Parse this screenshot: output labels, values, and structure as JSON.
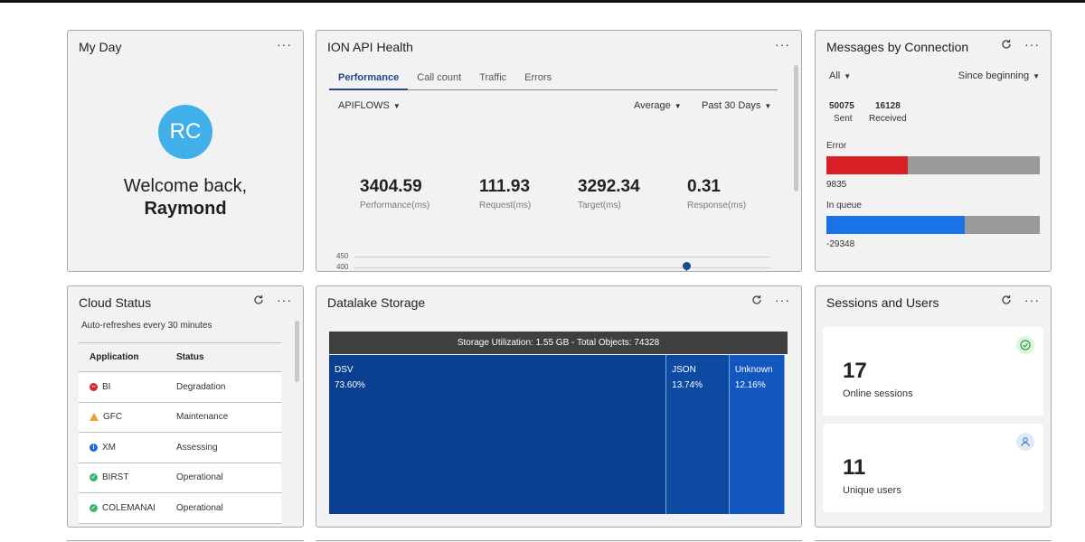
{
  "my_day": {
    "title": "My Day",
    "avatar_initials": "RC",
    "welcome_line": "Welcome back,",
    "user_name": "Raymond",
    "avatar_color": "#41b0ea"
  },
  "ion_api": {
    "title": "ION API Health",
    "tabs": [
      "Performance",
      "Call count",
      "Traffic",
      "Errors"
    ],
    "active_tab": "Performance",
    "filter_apiflows": "APIFLOWS",
    "filter_average": "Average",
    "filter_period": "Past 30 Days",
    "metrics": [
      {
        "value": "3404.59",
        "label": "Performance(ms)"
      },
      {
        "value": "111.93",
        "label": "Request(ms)"
      },
      {
        "value": "3292.34",
        "label": "Target(ms)"
      },
      {
        "value": "0.31",
        "label": "Response(ms)"
      }
    ],
    "chart": {
      "tick_450": "450",
      "tick_400": "400"
    }
  },
  "messages": {
    "title": "Messages by Connection",
    "filter_all": "All",
    "filter_since": "Since beginning",
    "sent_value": "50075",
    "sent_label": "Sent",
    "received_value": "16128",
    "received_label": "Received",
    "error_label": "Error",
    "error_value": "9835",
    "error_fill": 0.38,
    "queue_label": "In queue",
    "queue_value": "-29348",
    "queue_fill": 0.65,
    "error_color": "#d91f26",
    "queue_color": "#1773e6"
  },
  "cloud_status": {
    "title": "Cloud Status",
    "subtitle": "Auto-refreshes every 30 minutes",
    "col_application": "Application",
    "col_status": "Status",
    "rows": [
      {
        "app": "BI",
        "status": "Degradation",
        "icon": "minus-circle-icon",
        "color": "#d12a2f"
      },
      {
        "app": "GFC",
        "status": "Maintenance",
        "icon": "warning-triangle-icon",
        "color": "#e8a33a"
      },
      {
        "app": "XM",
        "status": "Assessing",
        "icon": "info-circle-icon",
        "color": "#1a6fd0"
      },
      {
        "app": "BIRST",
        "status": "Operational",
        "icon": "check-circle-icon",
        "color": "#3cb371"
      },
      {
        "app": "COLEMANAI",
        "status": "Operational",
        "icon": "check-circle-icon",
        "color": "#3cb371"
      }
    ]
  },
  "datalake": {
    "title": "Datalake Storage",
    "header": "Storage Utilization: 1.55 GB - Total Objects: 74328",
    "blocks": [
      {
        "name": "DSV",
        "pct": "73.60%",
        "share": 73.6,
        "color": "#0b3f8f"
      },
      {
        "name": "JSON",
        "pct": "13.74%",
        "share": 13.74,
        "color": "#0c4aa3"
      },
      {
        "name": "Unknown",
        "pct": "12.16%",
        "share": 12.16,
        "color": "#1256c0"
      }
    ]
  },
  "sessions": {
    "title": "Sessions and Users",
    "online_value": "17",
    "online_label": "Online sessions",
    "users_value": "11",
    "users_label": "Unique users"
  }
}
